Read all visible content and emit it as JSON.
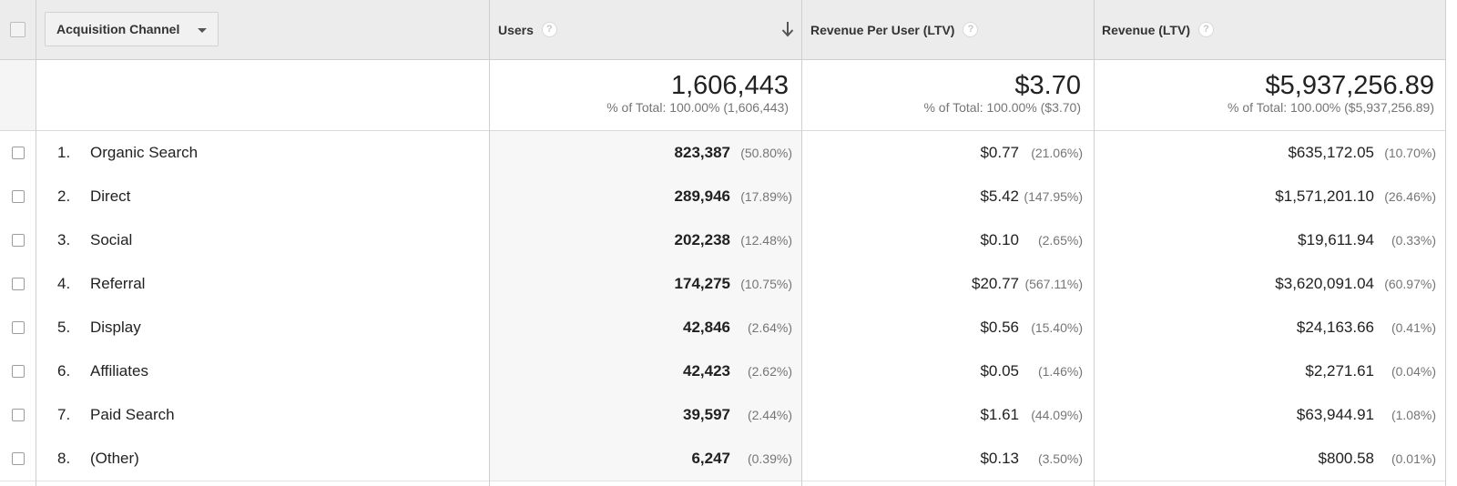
{
  "header": {
    "dimension_label": "Acquisition Channel",
    "columns": [
      {
        "label": "Users",
        "help": "?"
      },
      {
        "label": "Revenue Per User (LTV)",
        "help": "?"
      },
      {
        "label": "Revenue (LTV)",
        "help": "?"
      }
    ]
  },
  "totals": {
    "users": {
      "value": "1,606,443",
      "sub": "% of Total: 100.00% (1,606,443)"
    },
    "rpu": {
      "value": "$3.70",
      "sub": "% of Total: 100.00% ($3.70)"
    },
    "revenue": {
      "value": "$5,937,256.89",
      "sub": "% of Total: 100.00% ($5,937,256.89)"
    }
  },
  "rows": [
    {
      "index": "1.",
      "name": "Organic Search",
      "users": "823,387",
      "users_pct": "(50.80%)",
      "rpu": "$0.77",
      "rpu_pct": "(21.06%)",
      "revenue": "$635,172.05",
      "revenue_pct": "(10.70%)"
    },
    {
      "index": "2.",
      "name": "Direct",
      "users": "289,946",
      "users_pct": "(17.89%)",
      "rpu": "$5.42",
      "rpu_pct": "(147.95%)",
      "revenue": "$1,571,201.10",
      "revenue_pct": "(26.46%)"
    },
    {
      "index": "3.",
      "name": "Social",
      "users": "202,238",
      "users_pct": "(12.48%)",
      "rpu": "$0.10",
      "rpu_pct": "(2.65%)",
      "revenue": "$19,611.94",
      "revenue_pct": "(0.33%)"
    },
    {
      "index": "4.",
      "name": "Referral",
      "users": "174,275",
      "users_pct": "(10.75%)",
      "rpu": "$20.77",
      "rpu_pct": "(567.11%)",
      "revenue": "$3,620,091.04",
      "revenue_pct": "(60.97%)"
    },
    {
      "index": "5.",
      "name": "Display",
      "users": "42,846",
      "users_pct": "(2.64%)",
      "rpu": "$0.56",
      "rpu_pct": "(15.40%)",
      "revenue": "$24,163.66",
      "revenue_pct": "(0.41%)"
    },
    {
      "index": "6.",
      "name": "Affiliates",
      "users": "42,423",
      "users_pct": "(2.62%)",
      "rpu": "$0.05",
      "rpu_pct": "(1.46%)",
      "revenue": "$2,271.61",
      "revenue_pct": "(0.04%)"
    },
    {
      "index": "7.",
      "name": "Paid Search",
      "users": "39,597",
      "users_pct": "(2.44%)",
      "rpu": "$1.61",
      "rpu_pct": "(44.09%)",
      "revenue": "$63,944.91",
      "revenue_pct": "(1.08%)"
    },
    {
      "index": "8.",
      "name": "(Other)",
      "users": "6,247",
      "users_pct": "(0.39%)",
      "rpu": "$0.13",
      "rpu_pct": "(3.50%)",
      "revenue": "$800.58",
      "revenue_pct": "(0.01%)"
    }
  ]
}
